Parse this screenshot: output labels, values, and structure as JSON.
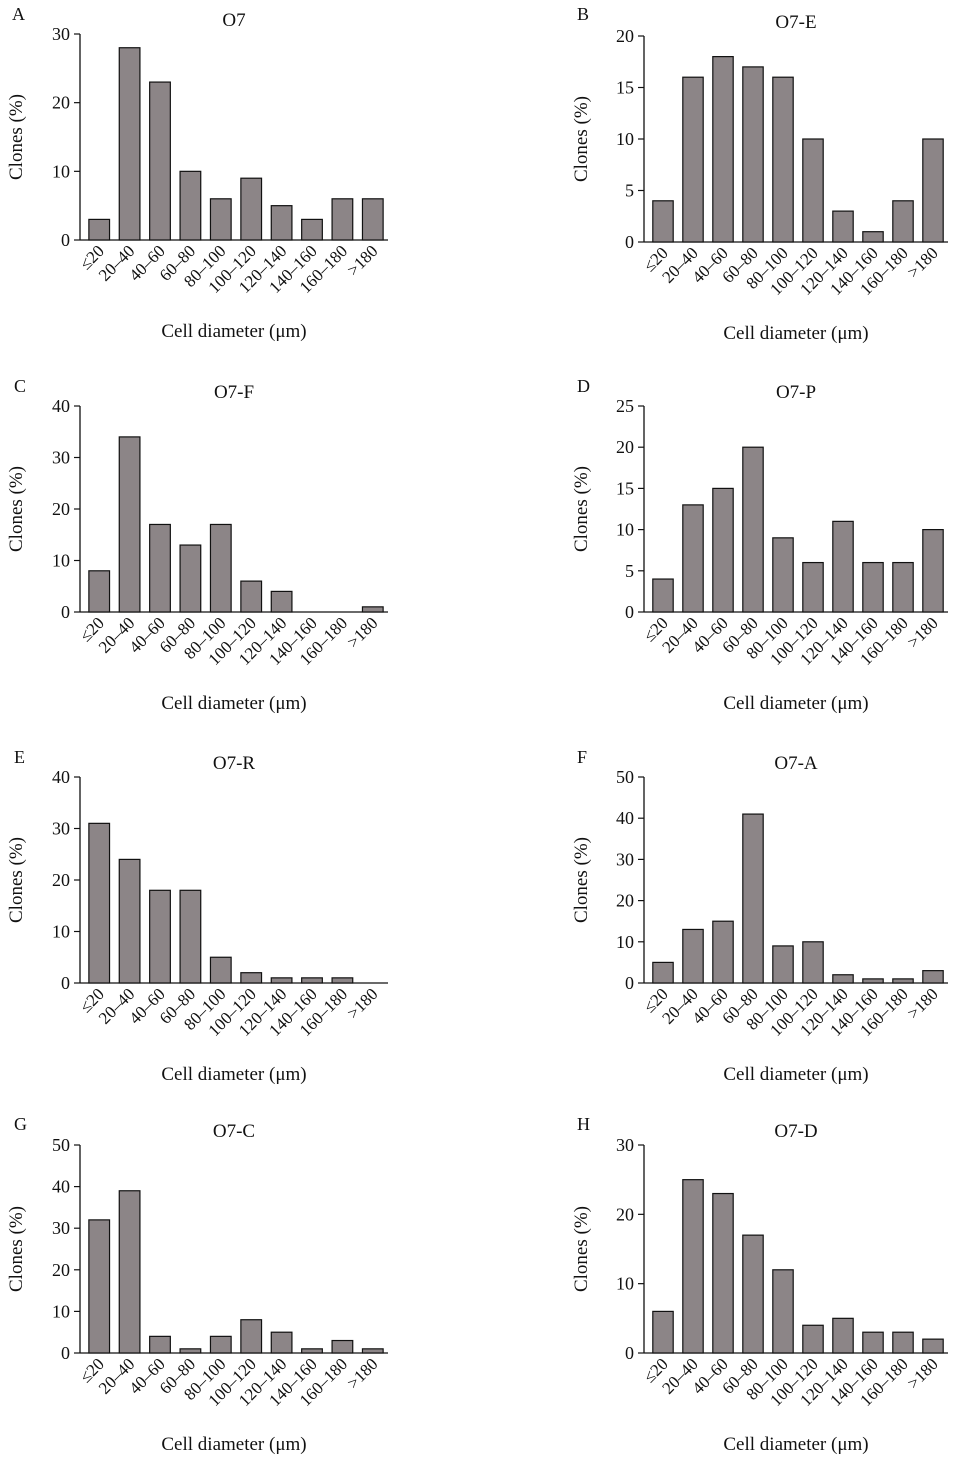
{
  "figure": {
    "xlabel": "Cell diameter (μm)",
    "ylabel": "Clones (%)",
    "bar_color": "#8c8587",
    "bar_stroke": "#111111",
    "categories": [
      "≤20",
      "20–40",
      "40–60",
      "60–80",
      "80–100",
      "100–120",
      "120–140",
      "140–160",
      "160–180",
      ">180"
    ]
  },
  "chart_data": [
    {
      "type": "bar",
      "letter": "A",
      "title": "O7",
      "xlabel": "Cell diameter (μm)",
      "ylabel": "Clones (%)",
      "categories": [
        "≤20",
        "20–40",
        "40–60",
        "60–80",
        "80–100",
        "100–120",
        "120–140",
        "140–160",
        "160–180",
        ">180"
      ],
      "values": [
        3,
        28,
        23,
        10,
        6,
        9,
        5,
        3,
        6,
        6
      ],
      "ylim": [
        0,
        30
      ],
      "yticks": [
        0,
        10,
        20,
        30
      ],
      "grid": false
    },
    {
      "type": "bar",
      "letter": "B",
      "title": "O7-E",
      "xlabel": "Cell diameter (μm)",
      "ylabel": "Clones (%)",
      "categories": [
        "≤20",
        "20–40",
        "40–60",
        "60–80",
        "80–100",
        "100–120",
        "120–140",
        "140–160",
        "160–180",
        ">180"
      ],
      "values": [
        4,
        16,
        18,
        17,
        16,
        10,
        3,
        1,
        4,
        10
      ],
      "ylim": [
        0,
        20
      ],
      "yticks": [
        0,
        5,
        10,
        15,
        20
      ],
      "grid": false
    },
    {
      "type": "bar",
      "letter": "C",
      "title": "O7-F",
      "xlabel": "Cell diameter (μm)",
      "ylabel": "Clones (%)",
      "categories": [
        "≤20",
        "20–40",
        "40–60",
        "60–80",
        "80–100",
        "100–120",
        "120–140",
        "140–160",
        "160–180",
        ">180"
      ],
      "values": [
        8,
        34,
        17,
        13,
        17,
        6,
        4,
        0,
        0,
        1
      ],
      "ylim": [
        0,
        40
      ],
      "yticks": [
        0,
        10,
        20,
        30,
        40
      ],
      "grid": false
    },
    {
      "type": "bar",
      "letter": "D",
      "title": "O7-P",
      "xlabel": "Cell diameter (μm)",
      "ylabel": "Clones (%)",
      "categories": [
        "≤20",
        "20–40",
        "40–60",
        "60–80",
        "80–100",
        "100–120",
        "120–140",
        "140–160",
        "160–180",
        ">180"
      ],
      "values": [
        4,
        13,
        15,
        20,
        9,
        6,
        11,
        6,
        6,
        10
      ],
      "ylim": [
        0,
        25
      ],
      "yticks": [
        0,
        5,
        10,
        15,
        20,
        25
      ],
      "grid": false
    },
    {
      "type": "bar",
      "letter": "E",
      "title": "O7-R",
      "xlabel": "Cell diameter (μm)",
      "ylabel": "Clones (%)",
      "categories": [
        "≤20",
        "20–40",
        "40–60",
        "60–80",
        "80–100",
        "100–120",
        "120–140",
        "140–160",
        "160–180",
        ">180"
      ],
      "values": [
        31,
        24,
        18,
        18,
        5,
        2,
        1,
        1,
        1,
        0
      ],
      "ylim": [
        0,
        40
      ],
      "yticks": [
        0,
        10,
        20,
        30,
        40
      ],
      "grid": false
    },
    {
      "type": "bar",
      "letter": "F",
      "title": "O7-A",
      "xlabel": "Cell diameter (μm)",
      "ylabel": "Clones (%)",
      "categories": [
        "≤20",
        "20–40",
        "40–60",
        "60–80",
        "80–100",
        "100–120",
        "120–140",
        "140–160",
        "160–180",
        ">180"
      ],
      "values": [
        5,
        13,
        15,
        41,
        9,
        10,
        2,
        1,
        1,
        3
      ],
      "ylim": [
        0,
        50
      ],
      "yticks": [
        0,
        10,
        20,
        30,
        40,
        50
      ],
      "grid": false
    },
    {
      "type": "bar",
      "letter": "G",
      "title": "O7-C",
      "xlabel": "Cell diameter (μm)",
      "ylabel": "Clones (%)",
      "categories": [
        "≤20",
        "20–40",
        "40–60",
        "60–80",
        "80–100",
        "100–120",
        "120–140",
        "140–160",
        "160–180",
        ">180"
      ],
      "values": [
        32,
        39,
        4,
        1,
        4,
        8,
        5,
        1,
        3,
        1
      ],
      "ylim": [
        0,
        50
      ],
      "yticks": [
        0,
        10,
        20,
        30,
        40,
        50
      ],
      "grid": false
    },
    {
      "type": "bar",
      "letter": "H",
      "title": "O7-D",
      "xlabel": "Cell diameter (μm)",
      "ylabel": "Clones (%)",
      "categories": [
        "≤20",
        "20–40",
        "40–60",
        "60–80",
        "80–100",
        "100–120",
        "120–140",
        "140–160",
        "160–180",
        ">180"
      ],
      "values": [
        6,
        25,
        23,
        17,
        12,
        4,
        5,
        3,
        3,
        2
      ],
      "ylim": [
        0,
        30
      ],
      "yticks": [
        0,
        10,
        20,
        30
      ],
      "grid": false
    }
  ]
}
